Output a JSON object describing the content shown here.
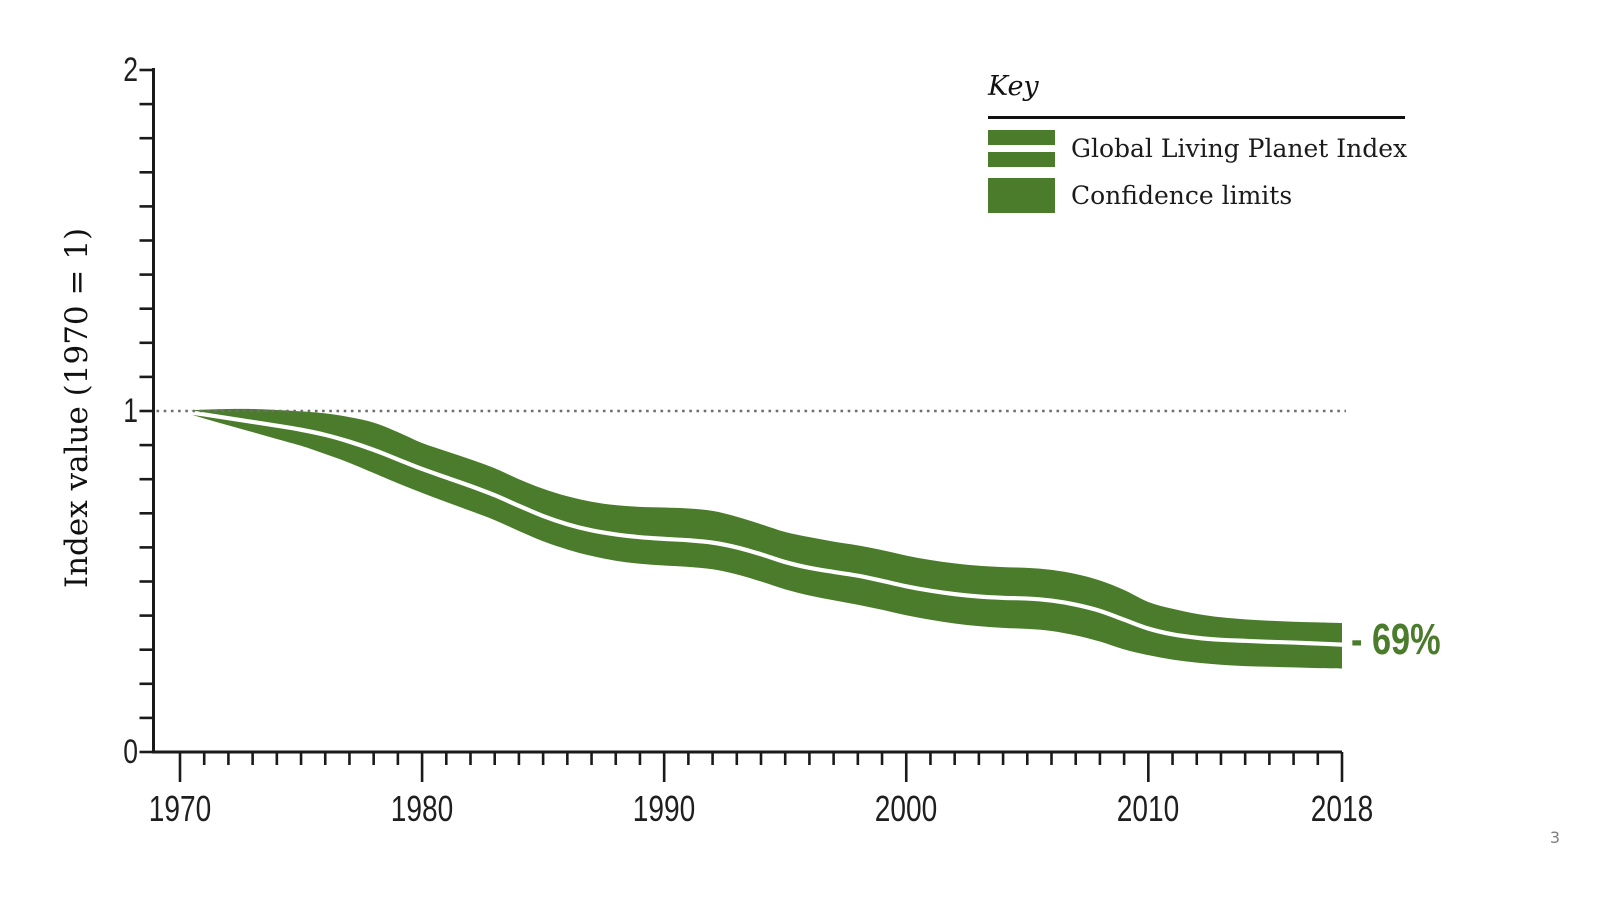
{
  "page": {
    "number": "3",
    "background": "#ffffff"
  },
  "key": {
    "title": "Key",
    "items": [
      {
        "label": "Global Living Planet Index",
        "swatch": "band-with-white-line"
      },
      {
        "label": "Confidence limits",
        "swatch": "solid-band"
      }
    ]
  },
  "chart_data": {
    "type": "line",
    "title": "",
    "xlabel": "",
    "ylabel": "Index value (1970 = 1)",
    "xlim": [
      1970,
      2018
    ],
    "ylim": [
      0,
      2
    ],
    "grid": "off",
    "baseline": {
      "value": 1,
      "style": "dotted"
    },
    "annotation": {
      "text": "- 69%",
      "x": 2018,
      "y": 0.315
    },
    "x_ticks": [
      {
        "year": 1970,
        "label": "1970"
      },
      {
        "year": 1980,
        "label": "1980"
      },
      {
        "year": 1990,
        "label": "1990"
      },
      {
        "year": 2000,
        "label": "2000"
      },
      {
        "year": 2010,
        "label": "2010"
      },
      {
        "year": 2018,
        "label": "2018"
      }
    ],
    "minor_x_step": 1,
    "y_ticks": [
      {
        "value": 2,
        "label": "2"
      },
      {
        "value": 1,
        "label": "1"
      },
      {
        "value": 0,
        "label": "0"
      }
    ],
    "minor_y_step": 0.1,
    "colors": {
      "band": "#4a7c2b",
      "center_line": "#ffffff",
      "axis": "#1a1a1a",
      "baseline": "#6e6e6e",
      "annotation": "#4a7c2b"
    },
    "x": [
      1970,
      1971,
      1972,
      1973,
      1974,
      1975,
      1976,
      1977,
      1978,
      1979,
      1980,
      1981,
      1982,
      1983,
      1984,
      1985,
      1986,
      1987,
      1988,
      1989,
      1990,
      1991,
      1992,
      1993,
      1994,
      1995,
      1996,
      1997,
      1998,
      1999,
      2000,
      2001,
      2002,
      2003,
      2004,
      2005,
      2006,
      2007,
      2008,
      2009,
      2010,
      2011,
      2012,
      2013,
      2014,
      2015,
      2016,
      2017,
      2018
    ],
    "series": [
      {
        "name": "Global Living Planet Index",
        "values": [
          1.0,
          0.99,
          0.979,
          0.968,
          0.957,
          0.945,
          0.93,
          0.91,
          0.886,
          0.858,
          0.83,
          0.805,
          0.78,
          0.753,
          0.722,
          0.692,
          0.668,
          0.65,
          0.638,
          0.63,
          0.625,
          0.621,
          0.614,
          0.6,
          0.58,
          0.557,
          0.54,
          0.528,
          0.517,
          0.502,
          0.486,
          0.473,
          0.463,
          0.456,
          0.452,
          0.45,
          0.444,
          0.432,
          0.414,
          0.388,
          0.362,
          0.345,
          0.335,
          0.329,
          0.326,
          0.323,
          0.321,
          0.318,
          0.315
        ]
      },
      {
        "name": "Confidence limit upper",
        "values": [
          1.0,
          1.004,
          1.006,
          1.006,
          1.003,
          0.999,
          0.993,
          0.982,
          0.966,
          0.938,
          0.906,
          0.882,
          0.858,
          0.832,
          0.8,
          0.772,
          0.75,
          0.734,
          0.724,
          0.719,
          0.717,
          0.714,
          0.707,
          0.69,
          0.668,
          0.645,
          0.63,
          0.617,
          0.606,
          0.592,
          0.576,
          0.563,
          0.553,
          0.546,
          0.542,
          0.54,
          0.534,
          0.522,
          0.503,
          0.475,
          0.44,
          0.42,
          0.405,
          0.395,
          0.389,
          0.385,
          0.382,
          0.38,
          0.378
        ]
      },
      {
        "name": "Confidence limit lower",
        "values": [
          1.0,
          0.978,
          0.958,
          0.938,
          0.918,
          0.898,
          0.874,
          0.848,
          0.818,
          0.788,
          0.76,
          0.733,
          0.707,
          0.68,
          0.648,
          0.618,
          0.594,
          0.575,
          0.561,
          0.552,
          0.547,
          0.543,
          0.536,
          0.521,
          0.5,
          0.477,
          0.459,
          0.445,
          0.432,
          0.417,
          0.401,
          0.388,
          0.377,
          0.369,
          0.364,
          0.361,
          0.355,
          0.342,
          0.324,
          0.301,
          0.284,
          0.271,
          0.262,
          0.256,
          0.252,
          0.25,
          0.248,
          0.246,
          0.245
        ]
      }
    ]
  }
}
